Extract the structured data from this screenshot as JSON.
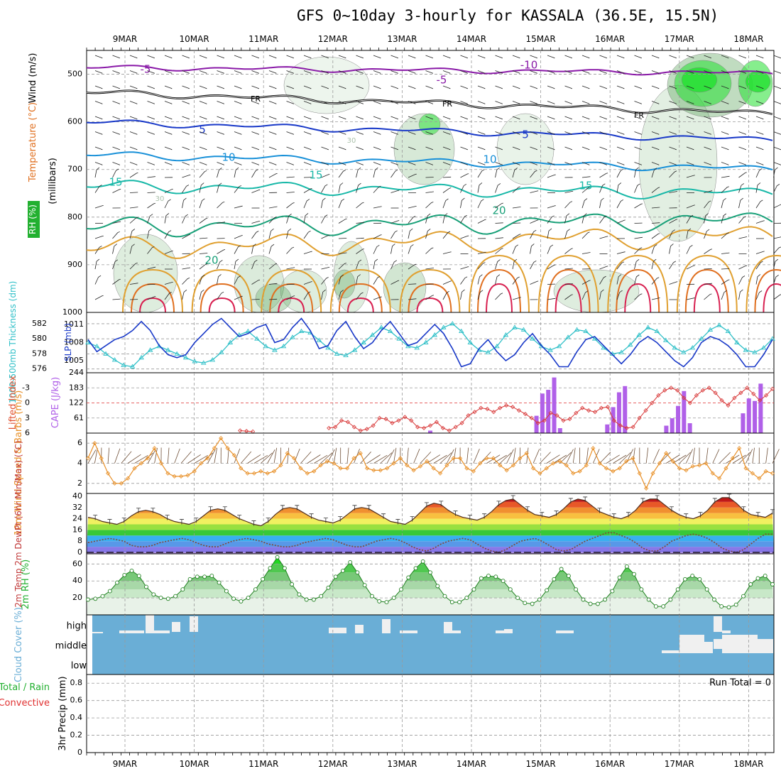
{
  "title": "GFS 0~10day 3-hourly for KASSALA (36.5E, 15.5N)",
  "colors": {
    "temperature_label": "#e07020",
    "wind_label": "#e03020",
    "rh_label": "#22b030",
    "cyan": "#30c0c8",
    "blue": "#1838c8",
    "purple": "#b060e8",
    "orange": "#e89028",
    "brown": "#705038",
    "cloud_blue": "#6aaed6"
  },
  "chart_data": [
    {
      "id": "upper",
      "type": "contour",
      "x_day_labels": [
        "9MAR",
        "10MAR",
        "11MAR",
        "12MAR",
        "13MAR",
        "14MAR",
        "15MAR",
        "16MAR",
        "17MAR",
        "18MAR"
      ],
      "ylabel_parts": [
        "RH (%)",
        "Temperature (°C)",
        "Wind (m/s)",
        "(millibars)"
      ],
      "y_ticks": [
        500,
        600,
        700,
        800,
        900,
        1000
      ],
      "ylim": [
        1000,
        450
      ],
      "temperature_contour_labels": [
        "-10",
        "-5",
        "-5",
        "FR",
        "FR",
        "FR",
        "5",
        "5",
        "10",
        "10",
        "15",
        "15",
        "15",
        "20",
        "20",
        "30",
        "30"
      ]
    },
    {
      "id": "slp",
      "type": "line",
      "ylabel_left": "1000-500mb Thickness (dm)",
      "ylabel_right": "SLP (mb)",
      "left_ticks": [
        "582",
        "580",
        "578",
        "576"
      ],
      "right_ticks": [
        "1011",
        "1008",
        "1005"
      ],
      "thickness": [
        579.5,
        579.0,
        578.0,
        577.2,
        576.5,
        576.3,
        577.5,
        578.5,
        579.0,
        578.5,
        578.0,
        577.5,
        577.0,
        576.8,
        577.2,
        578.2,
        579.5,
        580.5,
        581.0,
        580.0,
        579.0,
        578.5,
        579.0,
        580.2,
        581.0,
        580.8,
        579.8,
        578.8,
        578.0,
        577.8,
        578.5,
        579.5,
        580.5,
        581.5,
        581.0,
        580.0,
        579.0,
        578.8,
        579.5,
        580.5,
        581.5,
        582.0,
        581.0,
        579.5,
        578.5,
        578.2,
        579.0,
        580.5,
        581.5,
        581.2,
        580.0,
        579.0,
        578.5,
        579.0,
        580.2,
        581.2,
        581.0,
        580.0,
        578.8,
        578.0,
        578.2,
        579.2,
        580.5,
        581.5,
        581.0,
        579.8,
        578.8,
        578.2,
        578.8,
        580.0,
        581.2,
        581.8,
        581.0,
        579.5,
        578.5,
        578.2,
        578.8,
        580.0
      ],
      "slp": [
        1008.5,
        1006.5,
        1007.5,
        1008.5,
        1009.0,
        1010.0,
        1011.5,
        1010.0,
        1007.5,
        1006.0,
        1005.5,
        1006.0,
        1008.0,
        1009.5,
        1011.0,
        1012.0,
        1010.5,
        1009.0,
        1009.5,
        1010.5,
        1011.0,
        1008.0,
        1008.5,
        1010.5,
        1012.0,
        1010.0,
        1007.0,
        1007.5,
        1010.0,
        1011.5,
        1009.0,
        1007.0,
        1008.0,
        1010.0,
        1011.5,
        1009.5,
        1007.5,
        1008.0,
        1009.5,
        1011.0,
        1009.5,
        1007.0,
        1004.0,
        1004.5,
        1007.0,
        1008.5,
        1006.5,
        1005.0,
        1006.0,
        1008.0,
        1009.5,
        1007.5,
        1006.0,
        1004.0,
        1004.0,
        1006.5,
        1008.5,
        1009.0,
        1007.5,
        1006.0,
        1004.5,
        1006.0,
        1008.0,
        1009.0,
        1008.0,
        1006.5,
        1005.0,
        1004.0,
        1005.5,
        1008.0,
        1009.0,
        1008.5,
        1007.5,
        1006.0,
        1004.0,
        1004.0,
        1006.0,
        1008.5
      ],
      "thickness_range": [
        575.5,
        583.5
      ],
      "slp_range": [
        1003,
        1013
      ]
    },
    {
      "id": "cape",
      "type": "bar",
      "ylabel_left": "Lifted Index",
      "ylabel_right": "CAPE (J/kg)",
      "li_ticks": [
        "-3",
        "0",
        "3",
        "6"
      ],
      "cape_ticks": [
        "244",
        "183",
        "122",
        "61"
      ],
      "li_range": [
        -6,
        6
      ],
      "cape_range": [
        0,
        244
      ],
      "lifted_index": [
        null,
        null,
        null,
        null,
        null,
        null,
        null,
        null,
        null,
        null,
        null,
        null,
        null,
        null,
        null,
        null,
        null,
        null,
        null,
        null,
        null,
        null,
        null,
        null,
        5.5,
        5.6,
        5.7,
        null,
        null,
        null,
        null,
        null,
        null,
        null,
        null,
        null,
        null,
        null,
        5.0,
        4.8,
        3.5,
        3.8,
        4.8,
        5.5,
        5.2,
        4.5,
        3.0,
        3.2,
        4.0,
        3.5,
        2.8,
        3.5,
        4.8,
        5.0,
        4.5,
        3.8,
        5.0,
        5.5,
        4.8,
        4.0,
        2.5,
        1.8,
        1.0,
        1.2,
        1.8,
        1.0,
        0.5,
        0.8,
        1.5,
        2.2,
        3.0,
        4.0,
        3.5,
        2.0,
        2.5,
        3.5,
        3.2,
        2.0,
        1.0,
        1.5,
        1.8,
        1.0,
        0.8,
        3.5,
        4.5,
        5.0,
        4.8,
        3.0,
        1.5,
        0.0,
        -1.5,
        -2.5,
        -3.0,
        -2.5,
        -1.0,
        0.0,
        -1.5,
        -2.5,
        -3.0,
        -2.0,
        -0.5,
        0.5,
        -1.0,
        -2.0,
        -3.0,
        -1.8,
        -0.5,
        -1.5,
        -2.8
      ],
      "cape": [
        0,
        0,
        0,
        0,
        0,
        0,
        0,
        0,
        0,
        0,
        0,
        0,
        0,
        0,
        0,
        0,
        0,
        0,
        0,
        0,
        0,
        0,
        0,
        0,
        0,
        0,
        0,
        0,
        0,
        0,
        0,
        0,
        0,
        0,
        0,
        0,
        0,
        0,
        0,
        0,
        0,
        0,
        0,
        0,
        0,
        0,
        0,
        0,
        0,
        0,
        0,
        0,
        0,
        0,
        0,
        0,
        0,
        0,
        10,
        0,
        0,
        0,
        0,
        0,
        0,
        0,
        0,
        0,
        0,
        0,
        0,
        0,
        0,
        0,
        0,
        0,
        70,
        160,
        175,
        225,
        20,
        0,
        0,
        0,
        0,
        0,
        0,
        0,
        35,
        105,
        165,
        190,
        0,
        0,
        0,
        0,
        0,
        0,
        30,
        60,
        110,
        170,
        40,
        0,
        0,
        0,
        0,
        0,
        0,
        0,
        0,
        80,
        140,
        130,
        200,
        0,
        0
      ]
    },
    {
      "id": "wind",
      "type": "line",
      "ylabel": "10m Wind Speed & Barbs (m/s)",
      "y_ticks": [
        "6",
        "4",
        "2"
      ],
      "ylim": [
        1,
        7
      ],
      "speed": [
        4.5,
        6.0,
        4.5,
        3.0,
        2.0,
        2.0,
        2.5,
        3.5,
        4.0,
        4.5,
        5.5,
        4.0,
        3.0,
        2.7,
        2.7,
        2.8,
        3.2,
        4.0,
        4.5,
        5.5,
        6.5,
        5.5,
        4.8,
        3.5,
        3.0,
        3.0,
        3.2,
        3.0,
        3.2,
        3.8,
        5.0,
        4.5,
        3.5,
        3.0,
        3.2,
        3.8,
        4.2,
        4.0,
        3.5,
        3.5,
        4.5,
        5.0,
        3.5,
        3.3,
        3.3,
        3.5,
        4.0,
        4.5,
        3.8,
        3.3,
        3.7,
        4.2,
        3.5,
        3.0,
        3.8,
        4.5,
        4.5,
        3.5,
        3.2,
        4.0,
        4.5,
        4.5,
        3.8,
        3.3,
        3.8,
        4.5,
        5.0,
        3.5,
        3.0,
        3.5,
        4.0,
        4.2,
        3.8,
        3.0,
        3.2,
        3.8,
        5.5,
        4.0,
        3.5,
        3.2,
        3.5,
        4.2,
        4.5,
        3.0,
        1.5,
        3.0,
        4.0,
        5.0,
        4.2,
        3.5,
        3.3,
        3.7,
        3.8,
        4.0,
        3.0,
        2.5,
        3.5,
        4.5,
        5.5,
        3.5,
        3.0,
        2.5,
        3.2,
        3.0
      ]
    },
    {
      "id": "temp2m",
      "type": "area",
      "ylabel": "2m Temp 2m DewPt (6hr Min/Max) (°C)",
      "y_ticks": [
        "40",
        "32",
        "24",
        "16",
        "8",
        "0"
      ],
      "ylim": [
        -1,
        42
      ],
      "temp": [
        25,
        24,
        22,
        21,
        20,
        22,
        26,
        29,
        30,
        29,
        27,
        24,
        22,
        21,
        20,
        22,
        26,
        30,
        31,
        30,
        27,
        24,
        22,
        20,
        19,
        22,
        27,
        31,
        32,
        31,
        28,
        25,
        23,
        22,
        21,
        23,
        27,
        31,
        32,
        31,
        28,
        25,
        22,
        21,
        20,
        23,
        28,
        33,
        35,
        34,
        30,
        27,
        25,
        24,
        23,
        25,
        29,
        34,
        37,
        38,
        34,
        30,
        27,
        26,
        25,
        27,
        31,
        36,
        38,
        37,
        33,
        29,
        27,
        25,
        24,
        26,
        30,
        36,
        38,
        38,
        34,
        30,
        27,
        25,
        24,
        26,
        30,
        36,
        39,
        39,
        35,
        30,
        27,
        26,
        25,
        28
      ],
      "dewpt": [
        7,
        8,
        9,
        10,
        9,
        8,
        5,
        4,
        4,
        5,
        7,
        8,
        9,
        10,
        9,
        7,
        5,
        4,
        4,
        6,
        8,
        9,
        10,
        9,
        8,
        6,
        5,
        4,
        4,
        5,
        7,
        8,
        9,
        10,
        9,
        7,
        5,
        4,
        4,
        6,
        8,
        9,
        10,
        9,
        7,
        4,
        2,
        1,
        3,
        6,
        8,
        9,
        10,
        9,
        6,
        3,
        1,
        0,
        2,
        5,
        8,
        9,
        10,
        8,
        5,
        2,
        1,
        2,
        5,
        8,
        10,
        12,
        14,
        14,
        12,
        10,
        7,
        3,
        1,
        1,
        4,
        8,
        10,
        12,
        13,
        12,
        10,
        7,
        3,
        1,
        0,
        2,
        6,
        10,
        13,
        13
      ]
    },
    {
      "id": "rh2m",
      "type": "area",
      "ylabel": "2m RH (%)",
      "y_ticks": [
        "60",
        "40",
        "20"
      ],
      "ylim": [
        0,
        72
      ],
      "rh": [
        18,
        19,
        22,
        28,
        38,
        47,
        52,
        46,
        33,
        24,
        20,
        19,
        22,
        30,
        42,
        45,
        45,
        46,
        38,
        28,
        19,
        16,
        20,
        30,
        42,
        55,
        68,
        55,
        36,
        24,
        18,
        18,
        22,
        32,
        45,
        52,
        62,
        50,
        35,
        22,
        16,
        15,
        20,
        30,
        44,
        55,
        63,
        50,
        34,
        22,
        15,
        15,
        20,
        30,
        43,
        46,
        45,
        40,
        30,
        20,
        14,
        13,
        18,
        29,
        42,
        54,
        46,
        30,
        18,
        13,
        13,
        18,
        28,
        44,
        57,
        48,
        30,
        18,
        10,
        10,
        18,
        30,
        42,
        46,
        42,
        30,
        18,
        10,
        9,
        12,
        22,
        36,
        43,
        46,
        36
      ]
    },
    {
      "id": "cloud",
      "type": "bar",
      "ylabel": "Cloud Cover (%)",
      "y_ticks": [
        "high",
        "middle",
        "low"
      ]
    },
    {
      "id": "precip",
      "type": "bar",
      "ylabel_left_parts": [
        "Total / Rain",
        "Convective"
      ],
      "ylabel": "3hr Precip (mm)",
      "y_ticks": [
        "0.8",
        "0.6",
        "0.4",
        "0.2",
        "0"
      ],
      "ylim": [
        0,
        0.9
      ],
      "run_total_label": "Run Total = 0",
      "values": []
    }
  ]
}
